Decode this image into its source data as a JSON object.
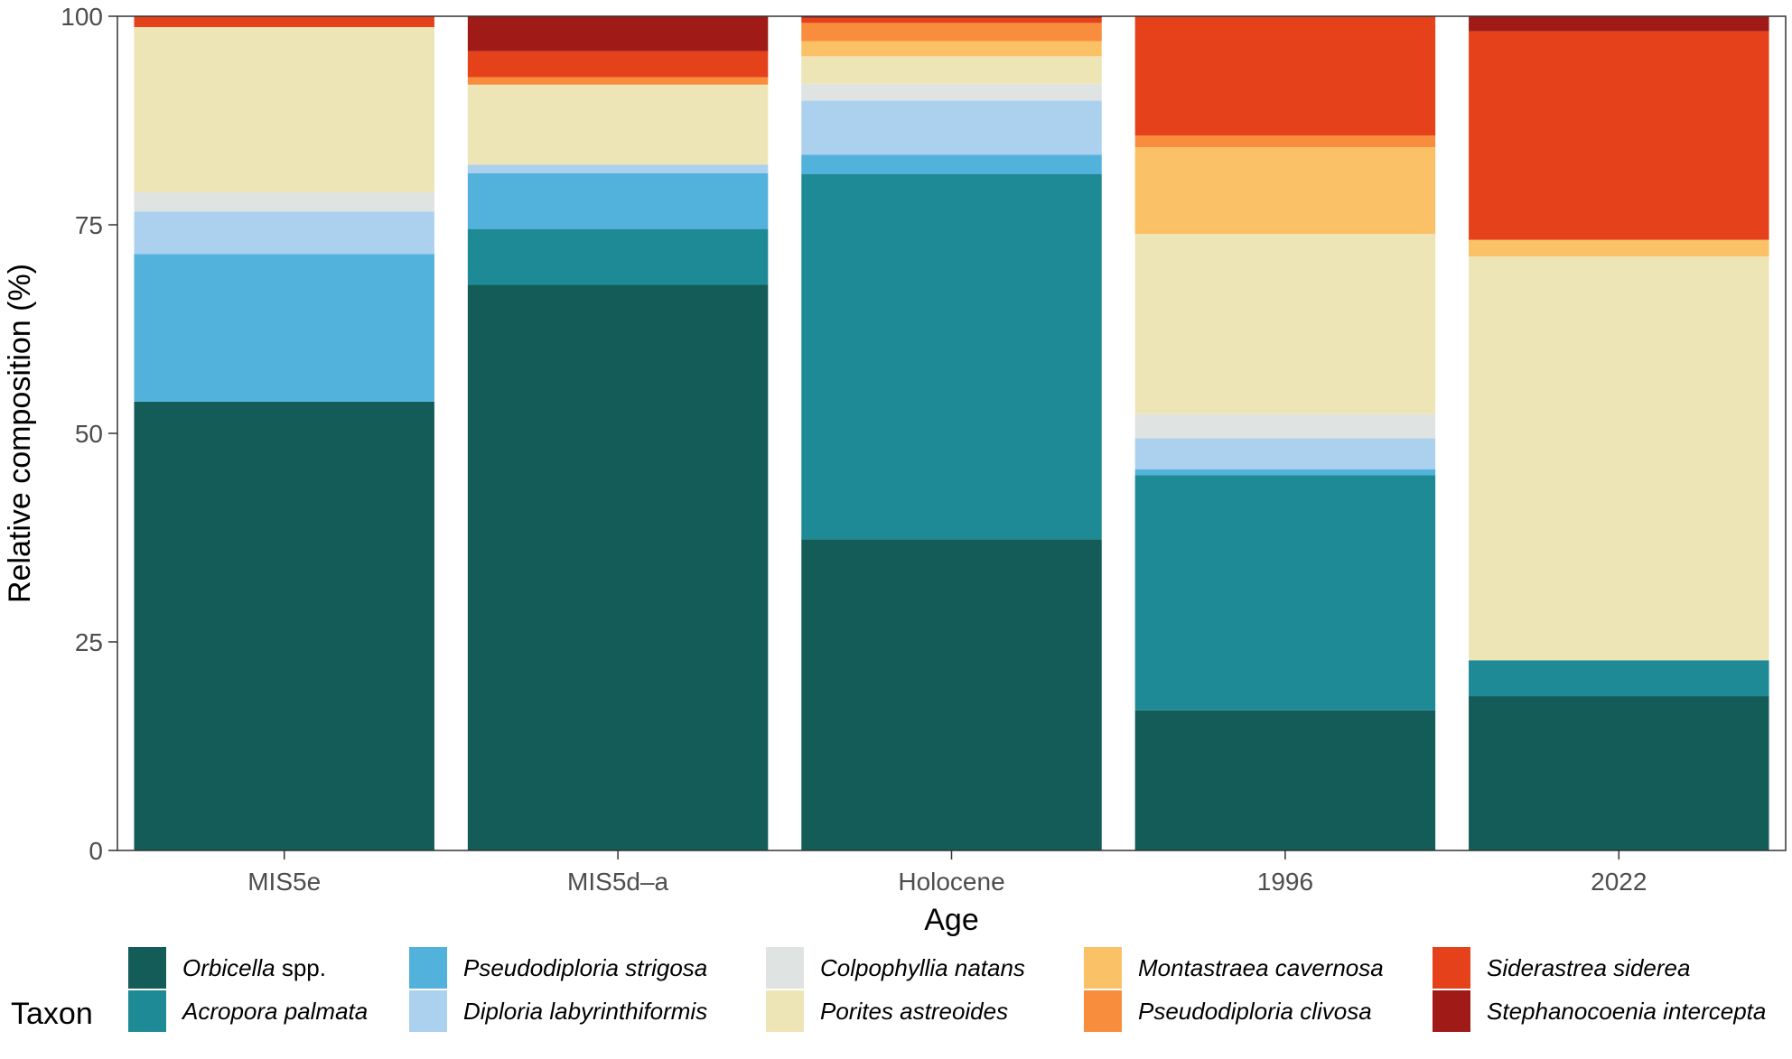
{
  "chart_data": {
    "type": "bar",
    "stacked": true,
    "xlabel": "Age",
    "ylabel": "Relative composition (%)",
    "ylim": [
      0,
      100
    ],
    "yticks": [
      0,
      25,
      50,
      75,
      100
    ],
    "categories": [
      "MIS5e",
      "MIS5d–a",
      "Holocene",
      "1996",
      "2022"
    ],
    "legend_title": "Taxon",
    "legend_position": "bottom",
    "series": [
      {
        "name": "Orbicella",
        "name_suffix": " spp.",
        "color": "#135C58",
        "values": [
          53.8,
          67.8,
          37.3,
          16.8,
          18.5
        ]
      },
      {
        "name": "Acropora palmata",
        "color": "#1D8A96",
        "values": [
          0.0,
          6.7,
          43.8,
          28.2,
          4.3
        ]
      },
      {
        "name": "Pseudodiploria strigosa",
        "color": "#52B2DC",
        "values": [
          17.7,
          6.7,
          2.3,
          0.7,
          0.0
        ]
      },
      {
        "name": "Diploria labyrinthiformis",
        "color": "#ABD1EE",
        "values": [
          5.1,
          1.0,
          6.5,
          3.7,
          0.0
        ]
      },
      {
        "name": "Colpophyllia natans",
        "color": "#DFE3E2",
        "values": [
          2.3,
          0.0,
          2.0,
          2.9,
          0.0
        ]
      },
      {
        "name": "Porites astreoides",
        "color": "#EEE5B6",
        "values": [
          19.8,
          9.6,
          3.3,
          21.6,
          48.4
        ]
      },
      {
        "name": "Montastraea cavernosa",
        "color": "#FBC166",
        "values": [
          0.0,
          0.0,
          1.8,
          10.4,
          2.0
        ]
      },
      {
        "name": "Pseudodiploria clivosa",
        "color": "#F88E3D",
        "values": [
          0.0,
          0.9,
          2.2,
          1.4,
          0.0
        ]
      },
      {
        "name": "Siderastrea siderea",
        "color": "#E5411A",
        "values": [
          1.3,
          3.1,
          0.6,
          14.3,
          25.0
        ]
      },
      {
        "name": "Stephanocoenia intercepta",
        "color": "#A01A17",
        "values": [
          0.0,
          4.2,
          0.2,
          0.0,
          1.8
        ]
      }
    ]
  }
}
